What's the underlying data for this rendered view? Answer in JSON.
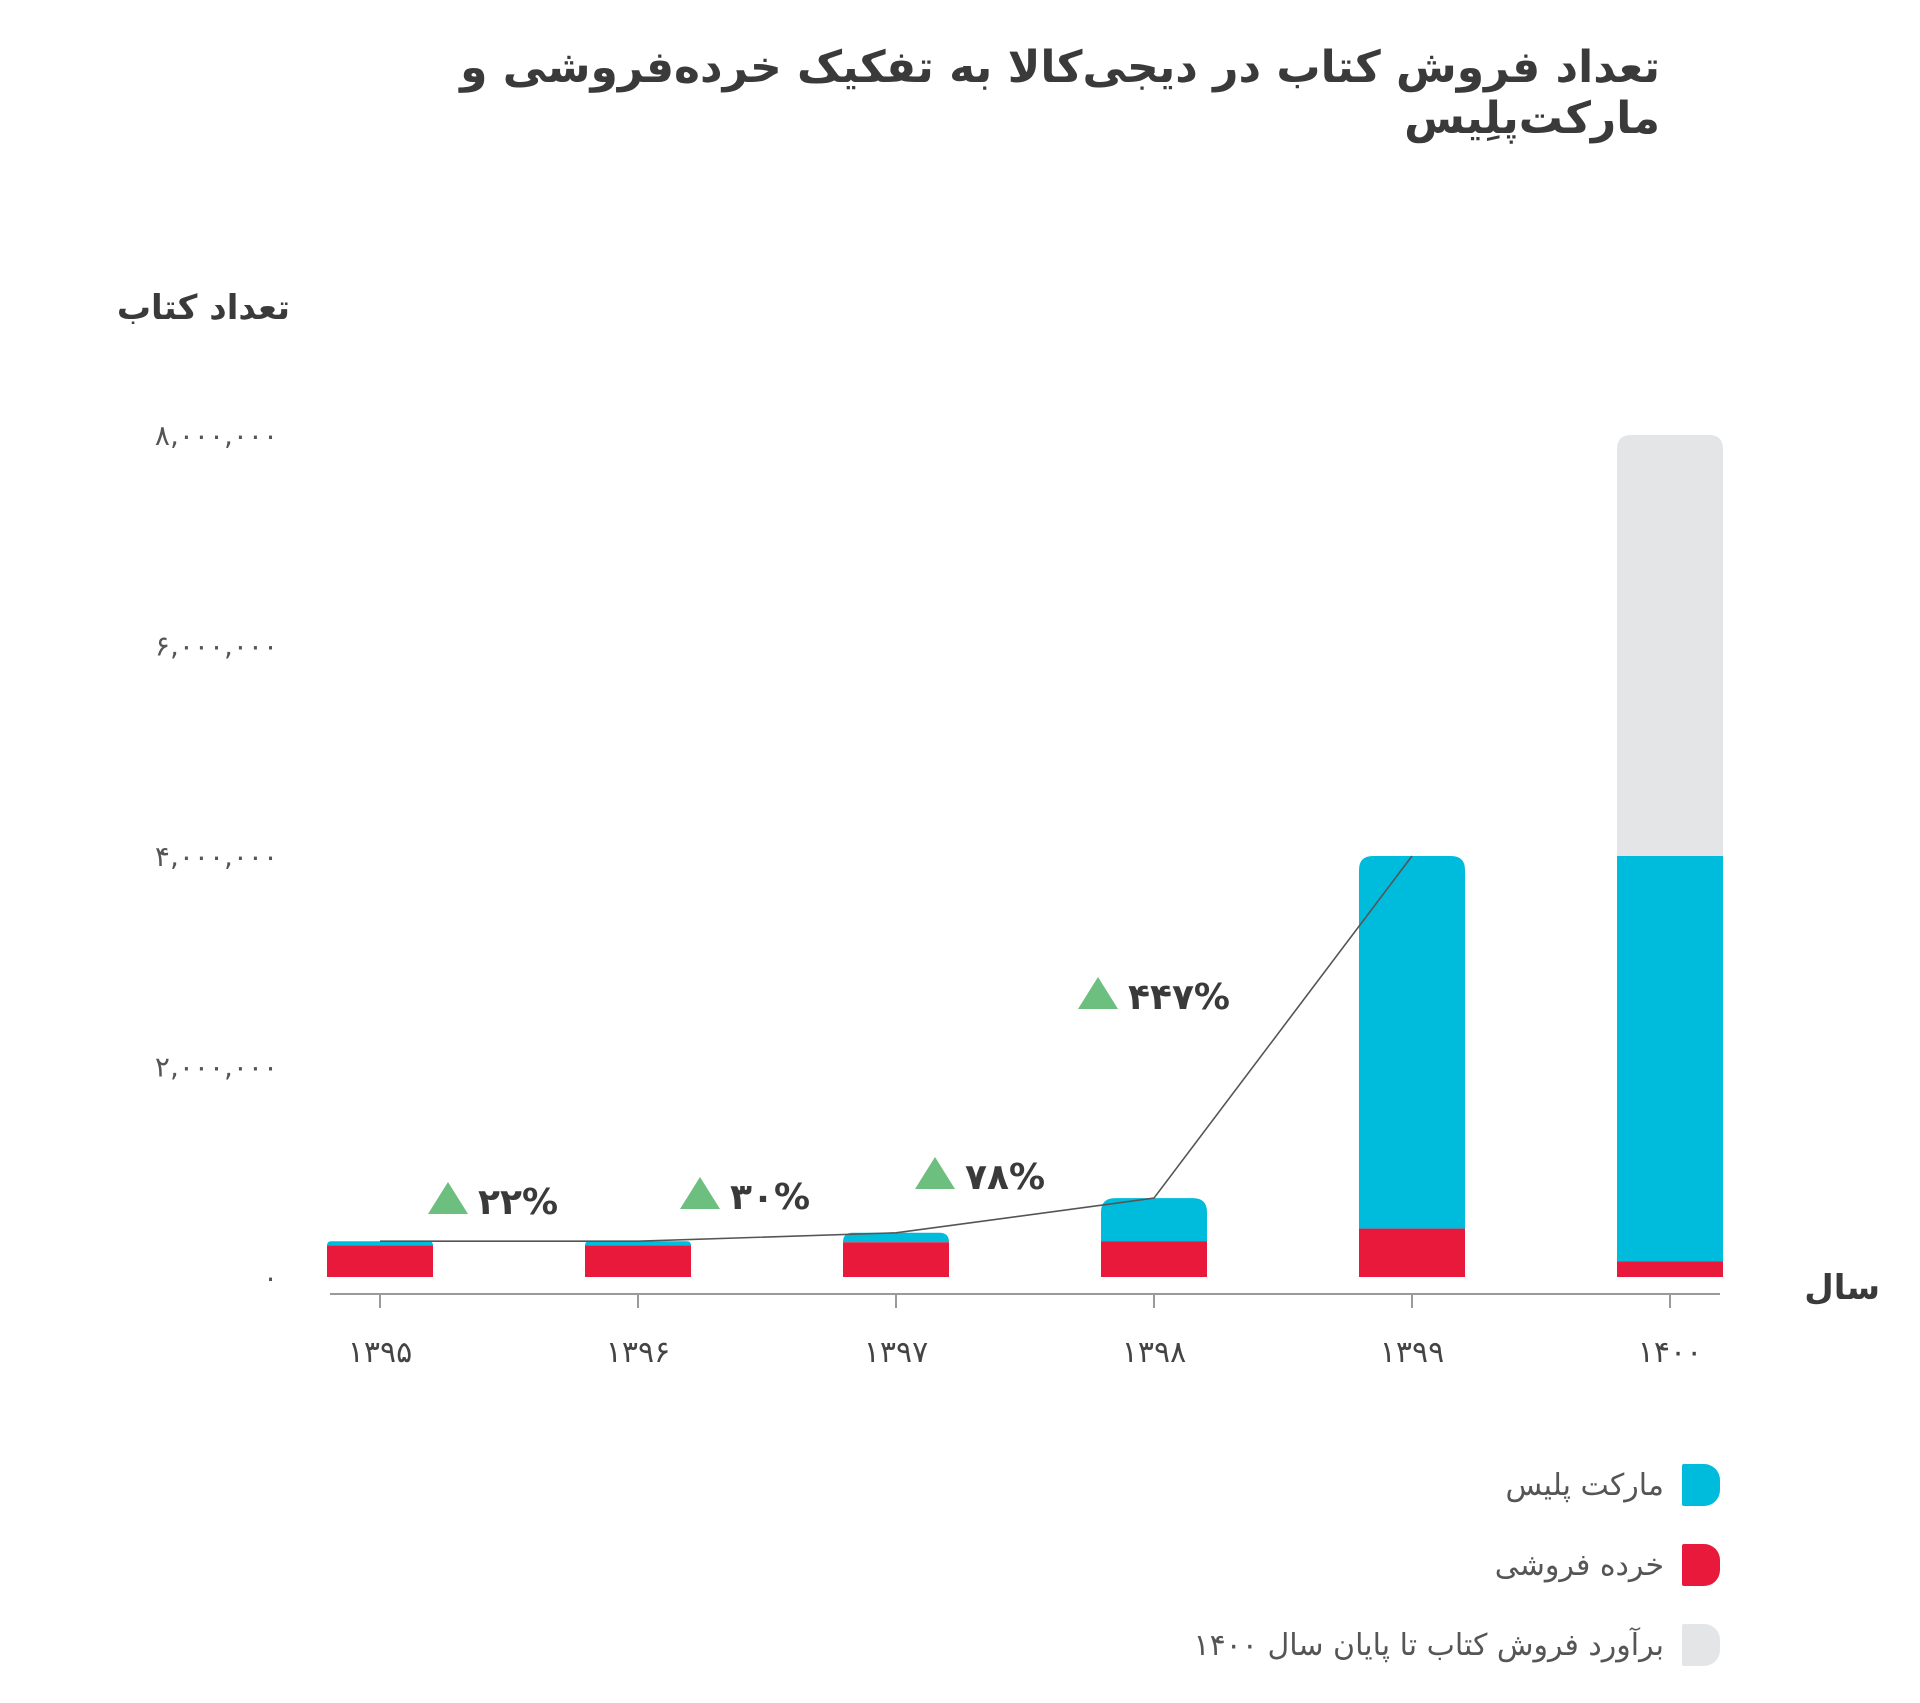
{
  "title": "تعداد فروش کتاب در دیجی‌کالا به تفکیک خرده‌فروشی و مارکت‌پلِیس",
  "colors": {
    "marketplace": "#00bcdc",
    "retail": "#e8193a",
    "estimate": "#e4e5e7",
    "growth_marker": "#6cbf7e",
    "axis": "#9a9a9a",
    "text": "#3a3a3a"
  },
  "chart_data": {
    "type": "bar",
    "stacked": true,
    "xlabel": "سال",
    "ylabel": "تعداد کتاب",
    "ylim": [
      0,
      8000000
    ],
    "y_ticks": [
      0,
      2000000,
      4000000,
      6000000,
      8000000
    ],
    "y_tick_labels": [
      "۰",
      "۲,۰۰۰,۰۰۰",
      "۴,۰۰۰,۰۰۰",
      "۶,۰۰۰,۰۰۰",
      "۸,۰۰۰,۰۰۰"
    ],
    "categories": [
      "۱۳۹۵",
      "۱۳۹۶",
      "۱۳۹۷",
      "۱۳۹۸",
      "۱۳۹۹",
      "۱۴۰۰"
    ],
    "series": [
      {
        "name": "خرده فروشی",
        "key": "retail",
        "values": [
          300000,
          300000,
          330000,
          340000,
          460000,
          150000
        ]
      },
      {
        "name": "مارکت پلیس",
        "key": "marketplace",
        "values": [
          40000,
          40000,
          90000,
          410000,
          3540000,
          3850000
        ]
      },
      {
        "name": "برآورد فروش کتاب تا پایان سال ۱۴۰۰",
        "key": "estimate",
        "values": [
          0,
          0,
          0,
          0,
          0,
          4000000
        ]
      }
    ],
    "trend_line": [
      340000,
      340000,
      420000,
      750000,
      4000000
    ],
    "growth_annotations": [
      {
        "between": [
          0,
          1
        ],
        "label": "۲۲%",
        "value": 22
      },
      {
        "between": [
          1,
          2
        ],
        "label": "۳۰%",
        "value": 30
      },
      {
        "between": [
          2,
          3
        ],
        "label": "۷۸%",
        "value": 78
      },
      {
        "between": [
          3,
          4
        ],
        "label": "۴۴۷%",
        "value": 447
      }
    ],
    "legend": [
      {
        "label": "مارکت پلیس",
        "key": "marketplace"
      },
      {
        "label": "خرده فروشی",
        "key": "retail"
      },
      {
        "label": "برآورد فروش کتاب تا پایان سال ۱۴۰۰",
        "key": "estimate"
      }
    ],
    "legend_position": "bottom-right",
    "grid": false
  }
}
